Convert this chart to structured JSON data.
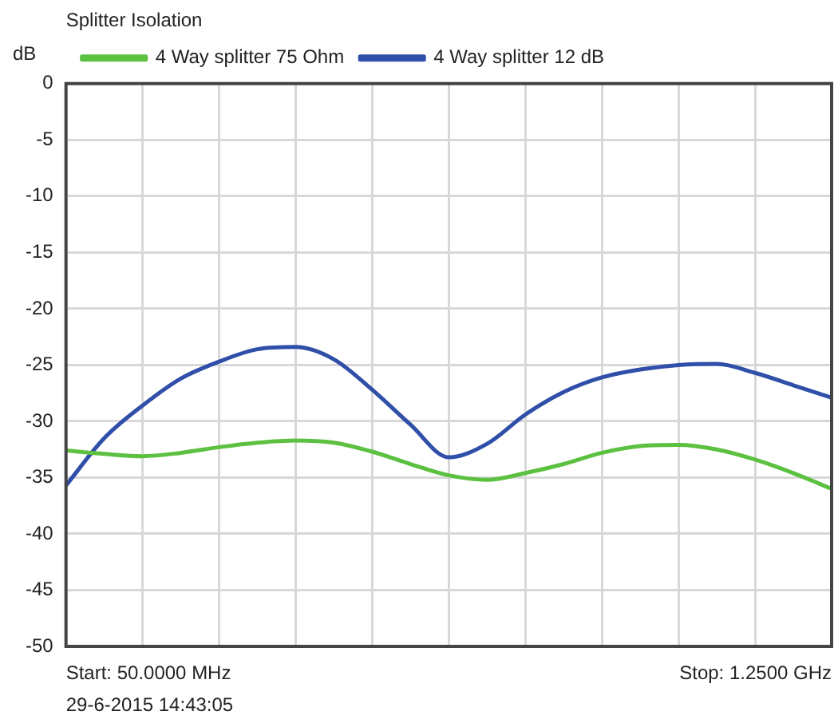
{
  "chart_data": {
    "type": "line",
    "title": "Splitter Isolation",
    "ylabel": "dB",
    "categories": [
      null,
      null,
      null,
      null,
      null,
      null,
      null,
      null,
      null,
      null,
      null,
      null,
      null,
      null,
      null,
      null,
      null,
      null,
      null,
      null,
      null
    ],
    "series": [
      {
        "name": "4 Way splitter 75 Ohm",
        "color": "#5cc040",
        "values": [
          -32.6,
          -32.9,
          -33.1,
          -32.8,
          -32.3,
          -31.9,
          -31.7,
          -31.9,
          -32.7,
          -33.8,
          -34.8,
          -35.2,
          -34.6,
          -33.8,
          -32.8,
          -32.2,
          -32.1,
          -32.5,
          -33.4,
          -34.6,
          -36
        ]
      },
      {
        "name": "4 Way splitter 12 dB",
        "color": "#2f4fa8",
        "values": [
          -35.7,
          -31.5,
          -28.6,
          -26.2,
          -24.7,
          -23.6,
          -23.4,
          -24.5,
          -27.2,
          -30.3,
          -33.2,
          -32,
          -29.4,
          -27.4,
          -26.1,
          -25.4,
          -25,
          -24.9,
          -25.7,
          -26.8,
          -27.9
        ]
      }
    ],
    "ylim": [
      -50,
      0
    ],
    "yticks": [
      -50,
      -45,
      -40,
      -35,
      -30,
      -25,
      -20,
      -15,
      -10,
      -5,
      0
    ],
    "grid": true,
    "legend": "top left",
    "marker": "none",
    "line_style": "solid",
    "tick_labels": "y",
    "annotations": [
      "Start: 50.0000 MHz",
      "29-6-2015 14:43:05",
      "Stop: 1.2500 GHz"
    ]
  }
}
